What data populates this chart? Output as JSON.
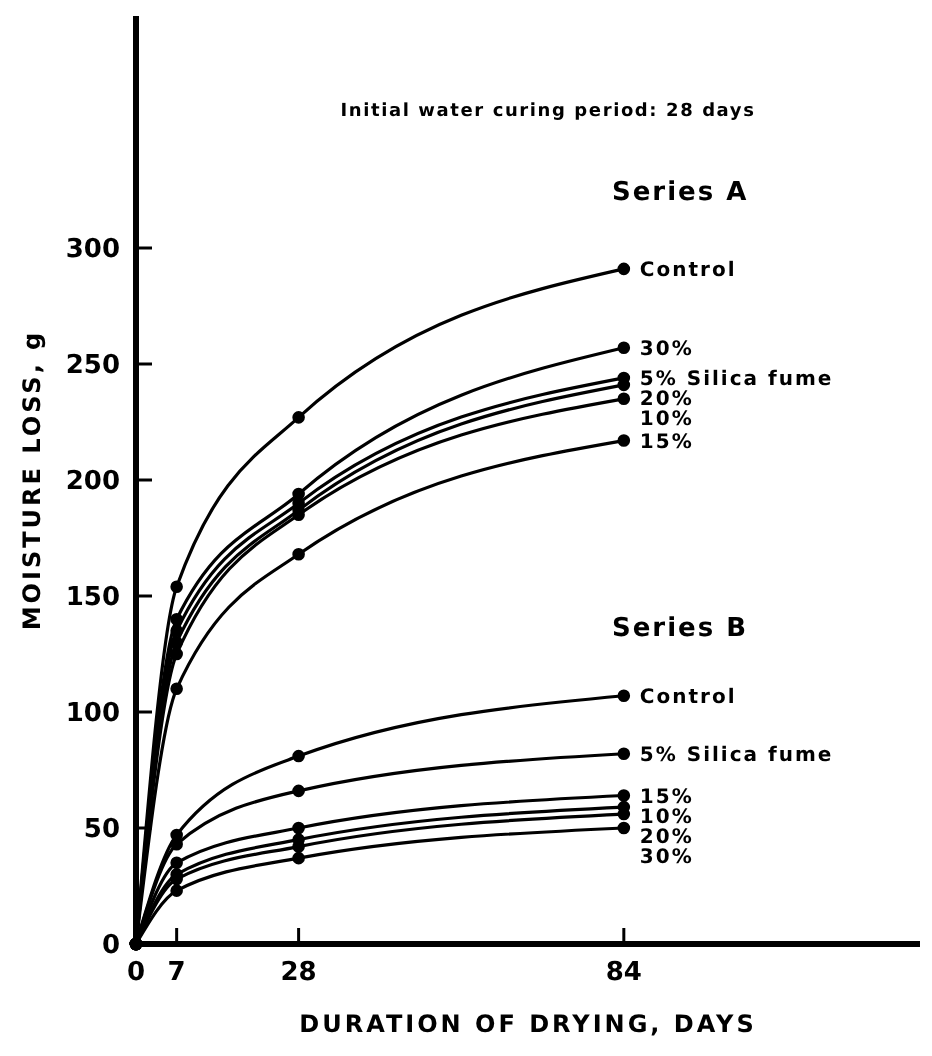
{
  "chart_data": {
    "type": "line",
    "xlabel": "DURATION OF DRYING, DAYS",
    "ylabel": "MOISTURE LOSS, g",
    "annotations": [
      "Initial water curing period: 28 days",
      "Series A",
      "Series B"
    ],
    "xlim": [
      0,
      135
    ],
    "xticks": [
      0,
      7,
      28,
      84
    ],
    "ylim": [
      0,
      400
    ],
    "yticks": [
      0,
      50,
      100,
      150,
      200,
      250,
      300
    ],
    "x": [
      0,
      7,
      28,
      84
    ],
    "marker": "circle",
    "line_style": "solid",
    "grid": false,
    "series": [
      {
        "name": "Control",
        "color": "#000000",
        "values": [
          0,
          154,
          227,
          291
        ]
      },
      {
        "name": "30%",
        "color": "#000000",
        "values": [
          0,
          140,
          194,
          257
        ]
      },
      {
        "name": "5% Silica fume",
        "color": "#000000",
        "values": [
          0,
          135,
          190,
          244
        ]
      },
      {
        "name": "20%",
        "color": "#000000",
        "values": [
          0,
          130,
          187,
          241
        ]
      },
      {
        "name": "10%",
        "color": "#000000",
        "values": [
          0,
          125,
          185,
          235
        ]
      },
      {
        "name": "15%",
        "color": "#000000",
        "values": [
          0,
          110,
          168,
          217
        ]
      },
      {
        "name": "Control",
        "color": "#000000",
        "values": [
          0,
          47,
          81,
          107
        ]
      },
      {
        "name": "5% Silica fume",
        "color": "#000000",
        "values": [
          0,
          43,
          66,
          82
        ]
      },
      {
        "name": "15%",
        "color": "#000000",
        "values": [
          0,
          35,
          50,
          64
        ]
      },
      {
        "name": "10%",
        "color": "#000000",
        "values": [
          0,
          30,
          45,
          59
        ]
      },
      {
        "name": "20%",
        "color": "#000000",
        "values": [
          0,
          28,
          42,
          56
        ]
      },
      {
        "name": "30%",
        "color": "#000000",
        "values": [
          0,
          23,
          37,
          50
        ]
      }
    ]
  }
}
